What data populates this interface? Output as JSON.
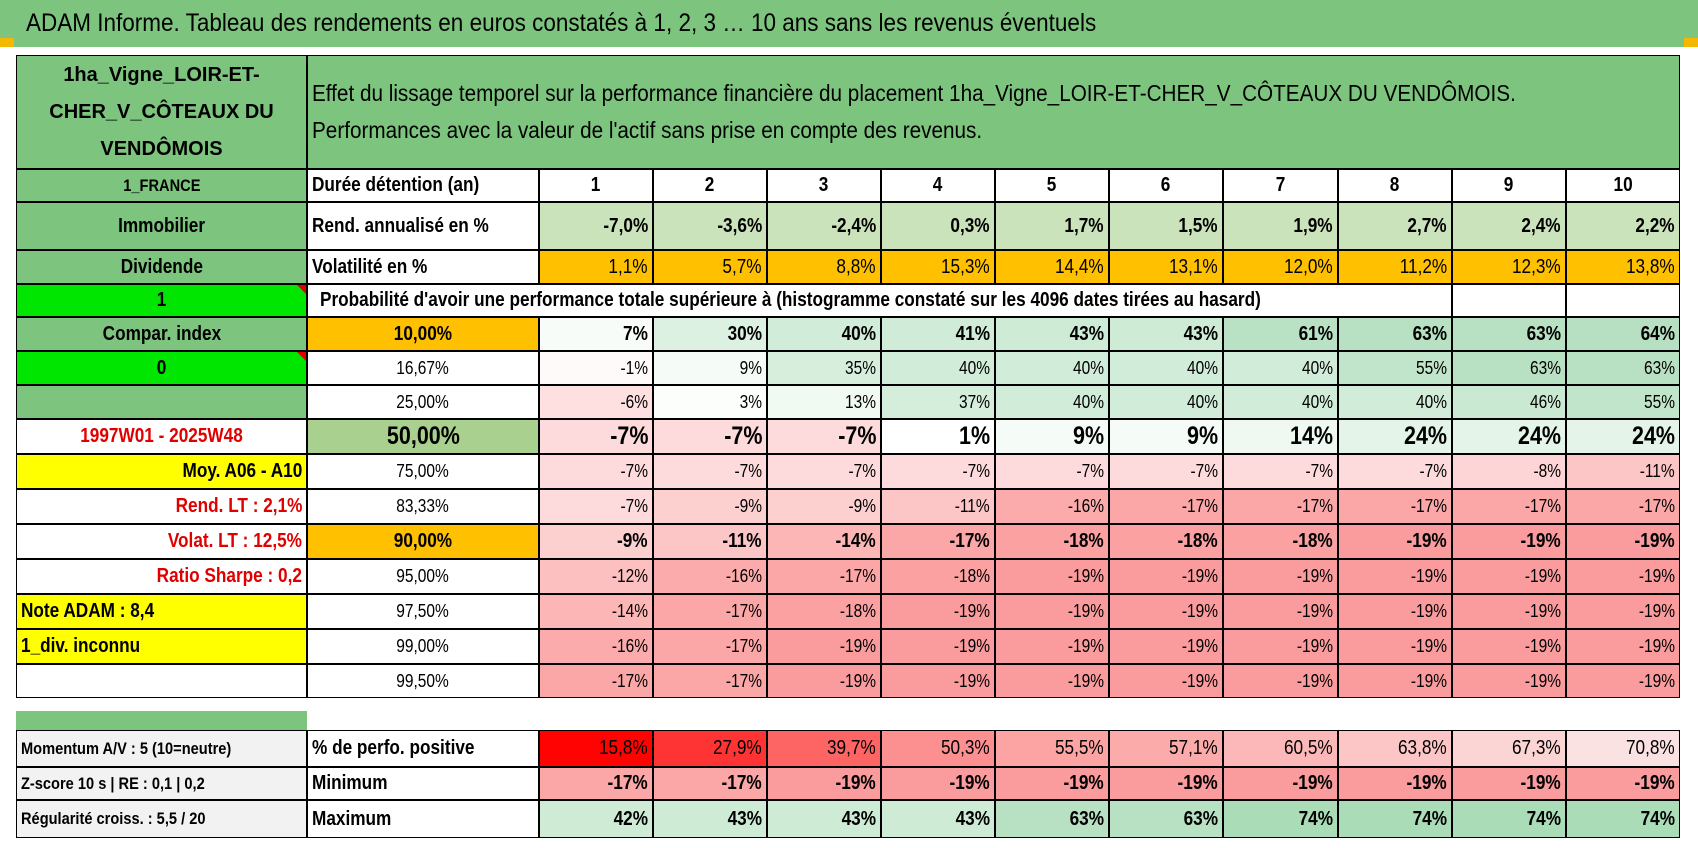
{
  "title": "ADAM Informe. Tableau des rendements en euros constatés à 1, 2, 3 … 10 ans sans les revenus éventuels",
  "asset_name": "1ha_Vigne_LOIR-ET-CHER_V_CÔTEAUX DU VENDÔMOIS",
  "description_line1": "Effet du lissage temporel sur la performance financière du placement 1ha_Vigne_LOIR-ET-CHER_V_CÔTEAUX DU VENDÔMOIS.",
  "description_line2": "Performances avec la valeur de l'actif sans prise en compte des revenus.",
  "left_panel": {
    "country": "1_FRANCE",
    "category": "Immobilier",
    "income_type": "Dividende",
    "flag_value_1": "1",
    "compar_index": "Compar. index",
    "flag_value_2": "0",
    "empty": "",
    "period": "1997W01 - 2025W48",
    "moyenne": "Moy. A06 - A10",
    "rend_lt": "Rend. LT :    2,1%",
    "volat_lt": "Volat. LT :    12,5%",
    "ratio_sharpe": "Ratio Sharpe :     0,2",
    "note_adam": "Note ADAM : 8,4",
    "div_status": "1_div. inconnu",
    "momentum": "Momentum A/V : 5 (10=neutre)",
    "zscore": "Z-score 10 s | RE : 0,1 | 0,2",
    "regularite": "Régularité croiss. : 5,5 / 20"
  },
  "durations_label": "Durée détention (an)",
  "durations": [
    "1",
    "2",
    "3",
    "4",
    "5",
    "6",
    "7",
    "8",
    "9",
    "10"
  ],
  "rend_label": "Rend. annualisé en %",
  "rend": [
    "-7,0%",
    "-3,6%",
    "-2,4%",
    "0,3%",
    "1,7%",
    "1,5%",
    "1,9%",
    "2,7%",
    "2,4%",
    "2,2%"
  ],
  "vol_label": "Volatilité en %",
  "vol": [
    "1,1%",
    "5,7%",
    "8,8%",
    "15,3%",
    "14,4%",
    "13,1%",
    "12,0%",
    "11,2%",
    "12,3%",
    "13,8%"
  ],
  "prob_header": "Probabilité d'avoir une performance totale supérieure à (histogramme constaté sur les 4096 dates tirées au hasard)",
  "prob_rows": [
    {
      "label": "10,00%",
      "values": [
        "7%",
        "30%",
        "40%",
        "41%",
        "43%",
        "43%",
        "61%",
        "63%",
        "63%",
        "64%"
      ]
    },
    {
      "label": "16,67%",
      "values": [
        "-1%",
        "9%",
        "35%",
        "40%",
        "40%",
        "40%",
        "40%",
        "55%",
        "63%",
        "63%"
      ]
    },
    {
      "label": "25,00%",
      "values": [
        "-6%",
        "3%",
        "13%",
        "37%",
        "40%",
        "40%",
        "40%",
        "40%",
        "46%",
        "55%"
      ]
    },
    {
      "label": "50,00%",
      "values": [
        "-7%",
        "-7%",
        "-7%",
        "1%",
        "9%",
        "9%",
        "14%",
        "24%",
        "24%",
        "24%"
      ]
    },
    {
      "label": "75,00%",
      "values": [
        "-7%",
        "-7%",
        "-7%",
        "-7%",
        "-7%",
        "-7%",
        "-7%",
        "-7%",
        "-8%",
        "-11%"
      ]
    },
    {
      "label": "83,33%",
      "values": [
        "-7%",
        "-9%",
        "-9%",
        "-11%",
        "-16%",
        "-17%",
        "-17%",
        "-17%",
        "-17%",
        "-17%"
      ]
    },
    {
      "label": "90,00%",
      "values": [
        "-9%",
        "-11%",
        "-14%",
        "-17%",
        "-18%",
        "-18%",
        "-18%",
        "-19%",
        "-19%",
        "-19%"
      ]
    },
    {
      "label": "95,00%",
      "values": [
        "-12%",
        "-16%",
        "-17%",
        "-18%",
        "-19%",
        "-19%",
        "-19%",
        "-19%",
        "-19%",
        "-19%"
      ]
    },
    {
      "label": "97,50%",
      "values": [
        "-14%",
        "-17%",
        "-18%",
        "-19%",
        "-19%",
        "-19%",
        "-19%",
        "-19%",
        "-19%",
        "-19%"
      ]
    },
    {
      "label": "99,00%",
      "values": [
        "-16%",
        "-17%",
        "-19%",
        "-19%",
        "-19%",
        "-19%",
        "-19%",
        "-19%",
        "-19%",
        "-19%"
      ]
    },
    {
      "label": "99,50%",
      "values": [
        "-17%",
        "-17%",
        "-19%",
        "-19%",
        "-19%",
        "-19%",
        "-19%",
        "-19%",
        "-19%",
        "-19%"
      ]
    }
  ],
  "positive_label": "% de perfo. positive",
  "positive": [
    "15,8%",
    "27,9%",
    "39,7%",
    "50,3%",
    "55,5%",
    "57,1%",
    "60,5%",
    "63,8%",
    "67,3%",
    "70,8%"
  ],
  "min_label": "Minimum",
  "minimum": [
    "-17%",
    "-17%",
    "-19%",
    "-19%",
    "-19%",
    "-19%",
    "-19%",
    "-19%",
    "-19%",
    "-19%"
  ],
  "max_label": "Maximum",
  "maximum": [
    "42%",
    "43%",
    "43%",
    "43%",
    "63%",
    "63%",
    "74%",
    "74%",
    "74%",
    "74%"
  ],
  "colors": {
    "header_green": "#7dc57e",
    "bright_green": "#00e600",
    "yellow": "#ffff00",
    "orange": "#ffc000",
    "olive": "#a9d08e",
    "positive_max": "#63be7b",
    "negative_max": "#f8696b",
    "momentum_red": "#ff0000"
  }
}
